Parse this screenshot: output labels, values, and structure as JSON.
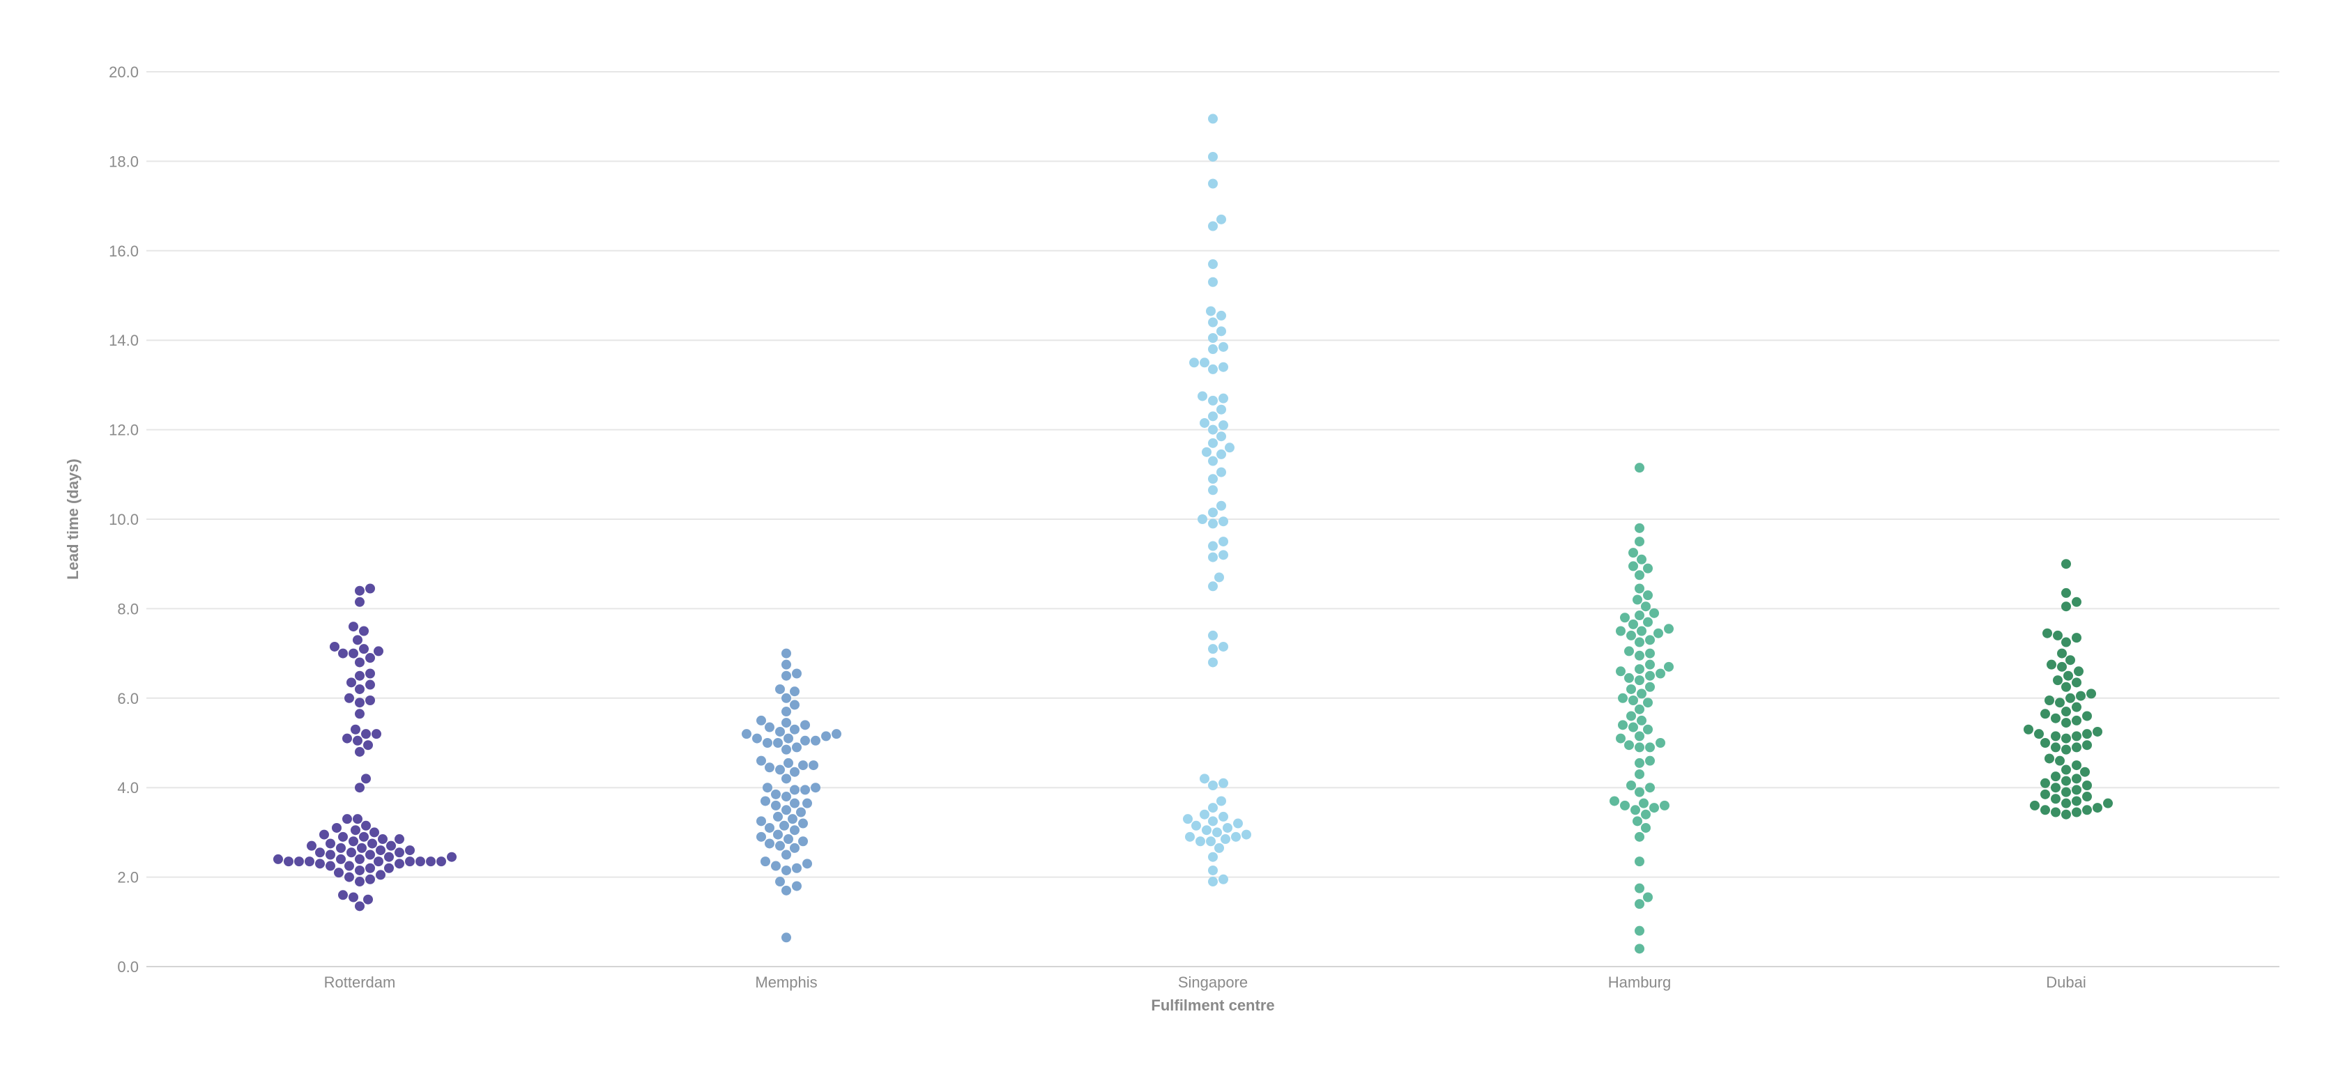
{
  "chart_data": {
    "type": "scatter",
    "subtype": "beeswarm",
    "xlabel": "Fulfilment centre",
    "ylabel": "Lead time (days)",
    "ylim": [
      0,
      20
    ],
    "yticks": [
      "0.0",
      "2.0",
      "4.0",
      "6.0",
      "8.0",
      "10.0",
      "12.0",
      "14.0",
      "16.0",
      "18.0",
      "20.0"
    ],
    "grid": "horizontal",
    "legend": "none",
    "categories": [
      "Rotterdam",
      "Memphis",
      "Singapore",
      "Hamburg",
      "Dubai"
    ],
    "series": [
      {
        "category": "Rotterdam",
        "color": "#5a4c9f",
        "values": [
          1.35,
          1.5,
          1.55,
          1.6,
          1.9,
          1.95,
          2.0,
          2.05,
          2.1,
          2.15,
          2.2,
          2.2,
          2.25,
          2.25,
          2.3,
          2.3,
          2.35,
          2.35,
          2.35,
          2.35,
          2.35,
          2.35,
          2.35,
          2.35,
          2.4,
          2.4,
          2.4,
          2.45,
          2.45,
          2.5,
          2.5,
          2.55,
          2.55,
          2.55,
          2.6,
          2.6,
          2.65,
          2.65,
          2.7,
          2.7,
          2.75,
          2.75,
          2.8,
          2.85,
          2.85,
          2.9,
          2.9,
          2.95,
          3.0,
          3.05,
          3.1,
          3.15,
          3.3,
          3.3,
          4.0,
          4.2,
          4.8,
          4.95,
          5.05,
          5.1,
          5.2,
          5.2,
          5.3,
          5.65,
          5.9,
          5.95,
          6.0,
          6.2,
          6.3,
          6.35,
          6.5,
          6.55,
          6.8,
          6.9,
          7.0,
          7.0,
          7.05,
          7.1,
          7.15,
          7.3,
          7.5,
          7.6,
          8.15,
          8.4,
          8.45
        ]
      },
      {
        "category": "Memphis",
        "color": "#7ba3ce",
        "values": [
          0.65,
          1.7,
          1.8,
          1.9,
          2.15,
          2.2,
          2.25,
          2.3,
          2.35,
          2.5,
          2.65,
          2.7,
          2.75,
          2.8,
          2.85,
          2.9,
          2.95,
          3.05,
          3.1,
          3.15,
          3.2,
          3.25,
          3.3,
          3.35,
          3.45,
          3.5,
          3.6,
          3.65,
          3.65,
          3.7,
          3.8,
          3.85,
          3.95,
          3.95,
          4.0,
          4.0,
          4.2,
          4.35,
          4.4,
          4.45,
          4.5,
          4.5,
          4.55,
          4.6,
          4.85,
          4.9,
          5.0,
          5.0,
          5.05,
          5.05,
          5.1,
          5.1,
          5.15,
          5.2,
          5.2,
          5.25,
          5.3,
          5.35,
          5.4,
          5.45,
          5.5,
          5.7,
          5.85,
          6.0,
          6.15,
          6.2,
          6.5,
          6.55,
          6.75,
          7.0
        ]
      },
      {
        "category": "Singapore",
        "color": "#9dd4ec",
        "values": [
          1.9,
          1.95,
          2.15,
          2.45,
          2.65,
          2.8,
          2.8,
          2.85,
          2.9,
          2.9,
          2.95,
          3.0,
          3.05,
          3.1,
          3.15,
          3.2,
          3.25,
          3.3,
          3.35,
          3.4,
          3.55,
          3.7,
          4.05,
          4.1,
          4.2,
          6.8,
          7.1,
          7.15,
          7.4,
          8.5,
          8.7,
          9.15,
          9.2,
          9.4,
          9.5,
          9.9,
          9.95,
          10.0,
          10.15,
          10.3,
          10.65,
          10.9,
          11.05,
          11.3,
          11.45,
          11.5,
          11.6,
          11.7,
          11.85,
          12.0,
          12.1,
          12.15,
          12.3,
          12.45,
          12.65,
          12.7,
          12.75,
          13.35,
          13.4,
          13.5,
          13.5,
          13.8,
          13.85,
          14.05,
          14.2,
          14.4,
          14.55,
          14.65,
          15.3,
          15.7,
          16.55,
          16.7,
          17.5,
          18.1,
          18.95
        ]
      },
      {
        "category": "Hamburg",
        "color": "#5fba9c",
        "values": [
          0.4,
          0.8,
          1.4,
          1.55,
          1.75,
          2.35,
          2.9,
          3.1,
          3.25,
          3.4,
          3.5,
          3.55,
          3.6,
          3.6,
          3.65,
          3.7,
          3.9,
          4.0,
          4.05,
          4.3,
          4.55,
          4.6,
          4.9,
          4.9,
          4.95,
          5.0,
          5.1,
          5.15,
          5.3,
          5.35,
          5.4,
          5.5,
          5.6,
          5.75,
          5.9,
          5.95,
          6.0,
          6.1,
          6.2,
          6.25,
          6.4,
          6.45,
          6.5,
          6.55,
          6.6,
          6.65,
          6.7,
          6.75,
          6.95,
          7.0,
          7.05,
          7.25,
          7.3,
          7.4,
          7.45,
          7.5,
          7.5,
          7.55,
          7.65,
          7.7,
          7.8,
          7.85,
          7.9,
          8.05,
          8.2,
          8.3,
          8.45,
          8.75,
          8.9,
          8.95,
          9.1,
          9.25,
          9.5,
          9.8,
          11.15
        ]
      },
      {
        "category": "Dubai",
        "color": "#3a8f63",
        "values": [
          3.4,
          3.45,
          3.45,
          3.5,
          3.5,
          3.55,
          3.6,
          3.65,
          3.65,
          3.7,
          3.75,
          3.8,
          3.85,
          3.9,
          3.95,
          4.0,
          4.05,
          4.1,
          4.15,
          4.2,
          4.25,
          4.35,
          4.4,
          4.5,
          4.6,
          4.65,
          4.85,
          4.9,
          4.9,
          4.95,
          5.0,
          5.1,
          5.15,
          5.15,
          5.2,
          5.2,
          5.25,
          5.3,
          5.45,
          5.5,
          5.55,
          5.6,
          5.65,
          5.7,
          5.8,
          5.9,
          5.95,
          6.0,
          6.05,
          6.1,
          6.25,
          6.35,
          6.4,
          6.5,
          6.6,
          6.7,
          6.75,
          6.85,
          7.0,
          7.25,
          7.35,
          7.4,
          7.45,
          8.05,
          8.15,
          8.35,
          9.0
        ]
      }
    ]
  }
}
